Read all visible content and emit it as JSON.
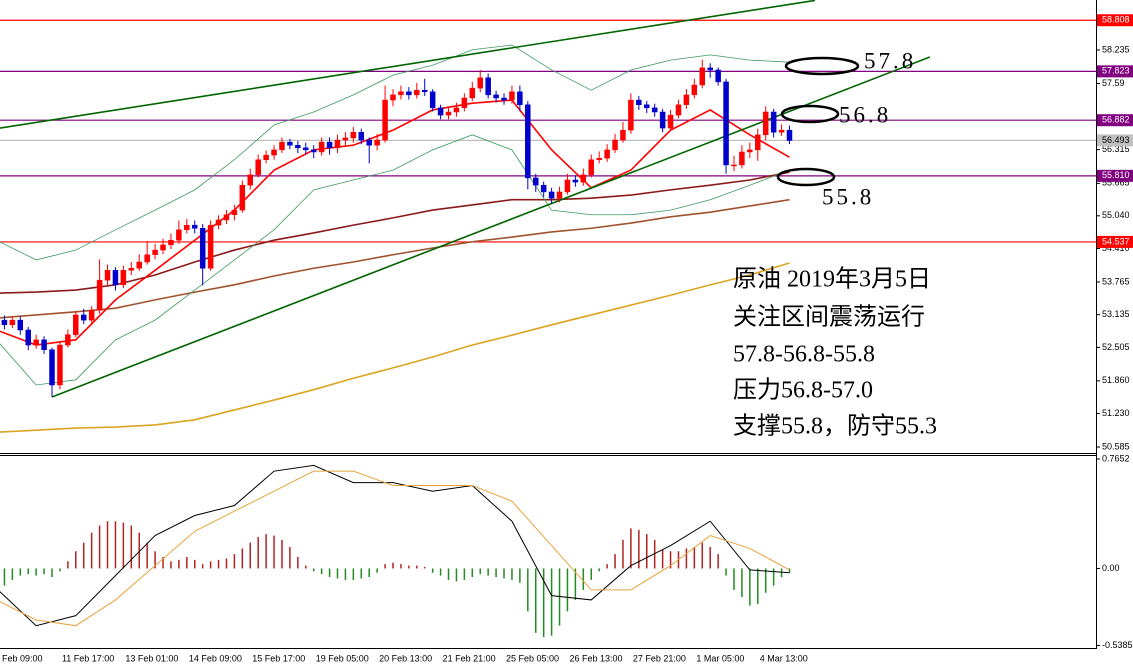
{
  "chart_data": [
    {
      "type": "candlestick",
      "categories": [
        "Feb 09:00",
        null,
        null,
        null,
        null,
        null,
        null,
        null,
        "11 Feb 17:00",
        null,
        null,
        null,
        null,
        null,
        null,
        null,
        "13 Feb 01:00",
        null,
        null,
        null,
        null,
        null,
        null,
        null,
        "14 Feb 09:00",
        null,
        null,
        null,
        null,
        null,
        null,
        null,
        "15 Feb 17:00",
        null,
        null,
        null,
        null,
        null,
        null,
        null,
        "19 Feb 05:00",
        null,
        null,
        null,
        null,
        null,
        null,
        null,
        "20 Feb 13:00",
        null,
        null,
        null,
        null,
        null,
        null,
        null,
        "21 Feb 21:00",
        null,
        null,
        null,
        null,
        null,
        null,
        null,
        "25 Feb 05:00",
        null,
        null,
        null,
        null,
        null,
        null,
        null,
        "26 Feb 13:00",
        null,
        null,
        null,
        null,
        null,
        null,
        null,
        "27 Feb 21:00",
        null,
        null,
        null,
        null,
        null,
        null,
        null,
        "1 Mar 05:00",
        null,
        null,
        null,
        null,
        null,
        null,
        null,
        "4 Mar 13:00",
        null,
        null,
        null,
        null
      ],
      "open": [
        52.95,
        53.03,
        52.94,
        53.03,
        52.84,
        52.55,
        52.65,
        52.46,
        51.78,
        52.55,
        52.75,
        53.13,
        53.03,
        53.22,
        53.8,
        53.99,
        53.71,
        53.99,
        54.03,
        54.15,
        54.29,
        54.38,
        54.48,
        54.57,
        54.77,
        54.86,
        54.8,
        54.03,
        54.86,
        54.96,
        55.06,
        55.15,
        55.63,
        55.83,
        56.12,
        56.21,
        56.31,
        56.46,
        56.4,
        56.35,
        56.31,
        56.27,
        56.46,
        56.35,
        56.5,
        56.54,
        56.65,
        56.5,
        56.4,
        56.5,
        57.27,
        57.37,
        57.43,
        57.37,
        57.46,
        57.43,
        57.12,
        56.98,
        57.04,
        57.12,
        57.31,
        57.5,
        57.7,
        57.37,
        57.31,
        57.27,
        57.43,
        57.18,
        55.77,
        55.63,
        55.5,
        55.38,
        55.5,
        55.73,
        55.69,
        55.83,
        56.12,
        56.15,
        56.31,
        56.5,
        56.69,
        57.27,
        57.18,
        57.12,
        57.04,
        56.73,
        56.98,
        57.18,
        57.37,
        57.56,
        57.89,
        57.85,
        57.62,
        56.02,
        56.02,
        56.27,
        56.31,
        56.6,
        57.04,
        56.65,
        56.69
      ],
      "high": [
        53.15,
        53.12,
        53.1,
        53.1,
        52.9,
        52.75,
        52.72,
        52.5,
        52.62,
        52.85,
        53.2,
        53.25,
        53.3,
        54.2,
        54.1,
        54.05,
        54.08,
        54.15,
        54.3,
        54.55,
        54.5,
        54.6,
        54.7,
        54.95,
        54.98,
        54.95,
        54.88,
        54.95,
        55.05,
        55.15,
        55.25,
        55.72,
        55.95,
        56.22,
        56.3,
        56.4,
        56.55,
        56.52,
        56.48,
        56.45,
        56.4,
        56.55,
        56.55,
        56.6,
        56.65,
        56.75,
        56.72,
        56.55,
        56.62,
        57.55,
        57.48,
        57.55,
        57.52,
        57.6,
        57.68,
        57.48,
        57.18,
        57.12,
        57.22,
        57.4,
        57.62,
        57.85,
        57.78,
        57.45,
        57.4,
        57.55,
        57.55,
        57.25,
        55.85,
        55.7,
        55.58,
        55.6,
        55.85,
        55.82,
        55.95,
        56.22,
        56.28,
        56.42,
        56.62,
        56.85,
        57.4,
        57.35,
        57.25,
        57.2,
        57.1,
        57.08,
        57.28,
        57.48,
        57.68,
        58.05,
        57.98,
        57.9,
        57.68,
        56.2,
        56.4,
        56.45,
        56.72,
        57.15,
        57.1,
        56.8,
        56.78
      ],
      "low": [
        52.85,
        52.85,
        52.88,
        52.75,
        52.45,
        52.48,
        52.38,
        51.55,
        51.7,
        52.5,
        52.7,
        52.95,
        52.98,
        53.15,
        53.7,
        53.6,
        53.65,
        53.9,
        53.98,
        54.1,
        54.2,
        54.3,
        54.4,
        54.5,
        54.7,
        54.7,
        53.7,
        53.98,
        54.78,
        54.88,
        54.95,
        55.1,
        55.55,
        55.78,
        56.05,
        56.12,
        56.25,
        56.32,
        56.25,
        56.22,
        56.15,
        56.2,
        56.22,
        56.25,
        56.4,
        56.45,
        56.42,
        56.05,
        56.3,
        56.45,
        57.15,
        57.28,
        57.28,
        57.3,
        57.35,
        57.05,
        56.9,
        56.9,
        56.95,
        57.05,
        57.25,
        57.42,
        57.3,
        57.22,
        57.18,
        57.2,
        57.05,
        55.55,
        55.5,
        55.4,
        55.28,
        55.3,
        55.45,
        55.6,
        55.62,
        55.78,
        56.05,
        56.08,
        56.25,
        56.45,
        56.62,
        57.08,
        57.02,
        56.95,
        56.65,
        56.68,
        56.92,
        57.1,
        57.3,
        57.5,
        57.7,
        57.55,
        55.85,
        55.9,
        55.95,
        56.15,
        56.1,
        56.5,
        56.55,
        56.58,
        56.42
      ],
      "close": [
        53.03,
        52.94,
        53.03,
        52.84,
        52.55,
        52.65,
        52.46,
        51.78,
        52.55,
        52.75,
        53.13,
        53.03,
        53.22,
        53.8,
        53.99,
        53.71,
        53.99,
        54.03,
        54.15,
        54.29,
        54.38,
        54.48,
        54.57,
        54.77,
        54.86,
        54.8,
        54.03,
        54.86,
        54.96,
        55.06,
        55.15,
        55.63,
        55.83,
        56.12,
        56.21,
        56.31,
        56.46,
        56.4,
        56.35,
        56.31,
        56.27,
        56.46,
        56.35,
        56.5,
        56.54,
        56.65,
        56.5,
        56.4,
        56.5,
        57.27,
        57.37,
        57.43,
        57.37,
        57.46,
        57.43,
        57.12,
        56.98,
        57.04,
        57.12,
        57.31,
        57.5,
        57.7,
        57.37,
        57.31,
        57.27,
        57.43,
        57.18,
        55.77,
        55.63,
        55.5,
        55.38,
        55.5,
        55.73,
        55.69,
        55.83,
        56.12,
        56.15,
        56.31,
        56.5,
        56.69,
        57.27,
        57.18,
        57.12,
        57.04,
        56.73,
        56.98,
        57.18,
        57.37,
        57.56,
        57.89,
        57.85,
        57.62,
        56.02,
        56.02,
        56.27,
        56.31,
        56.6,
        57.04,
        56.65,
        56.69,
        56.49
      ],
      "up_color": "#ff0000",
      "down_color": "#0000cd",
      "ylim": [
        50.47,
        59.198
      ],
      "yticks": [
        58.235,
        57.59,
        56.315,
        55.665,
        {
          "value": 55.04,
          "label": "55.040"
        },
        {
          "value": 54.41,
          "label": "54.410"
        },
        53.765,
        53.135,
        52.505,
        {
          "value": 51.86,
          "label": "51.860"
        },
        {
          "value": 51.23,
          "label": "51.230"
        },
        50.585
      ],
      "levels": [
        {
          "value": 58.808,
          "color": "#ff0000"
        },
        {
          "value": 57.823,
          "color": "#800080"
        },
        {
          "value": 56.882,
          "color": "#800080"
        },
        {
          "value": 56.493,
          "color": "#c0c0c0"
        },
        {
          "value": 55.81,
          "label": "55.810",
          "color": "#800080"
        },
        {
          "value": 54.537,
          "color": "#ff0000"
        }
      ],
      "overlays": [
        {
          "color": "#daa520",
          "x": [
            0,
            5,
            10,
            15,
            20,
            25,
            30,
            35,
            40,
            45,
            50,
            55,
            60,
            65,
            70,
            75,
            80,
            85,
            90,
            95,
            100
          ],
          "values": [
            50.87,
            50.91,
            50.95,
            50.97,
            51.01,
            51.11,
            51.3,
            51.49,
            51.69,
            51.91,
            52.11,
            52.32,
            52.55,
            52.74,
            52.94,
            53.13,
            53.32,
            53.51,
            53.71,
            53.9,
            54.13
          ]
        },
        {
          "color": "#a0522d",
          "x": [
            0,
            5,
            10,
            15,
            20,
            25,
            30,
            35,
            40,
            45,
            50,
            55,
            60,
            65,
            70,
            75,
            80,
            85,
            90,
            95,
            100
          ],
          "values": [
            53.07,
            53.13,
            53.19,
            53.26,
            53.42,
            53.57,
            53.71,
            53.88,
            54.03,
            54.15,
            54.29,
            54.42,
            54.54,
            54.63,
            54.73,
            54.8,
            54.9,
            55.02,
            55.11,
            55.23,
            55.35
          ]
        },
        {
          "color": "#8b1a1a",
          "x": [
            0,
            5,
            10,
            15,
            20,
            25,
            30,
            35,
            40,
            45,
            50,
            55,
            60,
            65,
            70,
            75,
            80,
            85,
            90,
            95,
            100
          ],
          "values": [
            53.55,
            53.57,
            53.61,
            53.71,
            53.9,
            54.15,
            54.38,
            54.57,
            54.71,
            54.86,
            55.0,
            55.15,
            55.25,
            55.35,
            55.35,
            55.38,
            55.44,
            55.54,
            55.63,
            55.73,
            55.88
          ]
        },
        {
          "color": "#3c9a5f",
          "x": [
            0,
            5,
            10,
            15,
            20,
            25,
            30,
            35,
            40,
            45,
            50,
            55,
            60,
            65,
            70,
            75,
            80,
            85,
            90,
            95,
            100
          ],
          "values": [
            54.57,
            54.19,
            54.38,
            54.77,
            55.15,
            55.54,
            56.12,
            56.79,
            57.04,
            57.37,
            57.75,
            57.94,
            58.24,
            58.33,
            57.85,
            57.46,
            57.85,
            58.04,
            58.14,
            58.04,
            58.0
          ]
        },
        {
          "color": "#3c9a5f",
          "x": [
            0,
            5,
            10,
            15,
            20,
            25,
            30,
            35,
            40,
            45,
            50,
            55,
            60,
            65,
            70,
            75,
            80,
            85,
            90,
            95,
            100
          ],
          "values": [
            52.65,
            51.78,
            51.88,
            52.65,
            53.03,
            53.61,
            54.19,
            54.77,
            55.54,
            55.73,
            55.92,
            56.31,
            56.6,
            56.31,
            55.15,
            55.06,
            55.06,
            55.15,
            55.35,
            55.63,
            55.92
          ]
        },
        {
          "color": "#ff0000",
          "x": [
            0,
            5,
            10,
            15,
            20,
            25,
            30,
            35,
            40,
            45,
            50,
            55,
            60,
            65,
            70,
            75,
            80,
            85,
            90,
            95,
            100
          ],
          "values": [
            52.84,
            52.55,
            52.65,
            53.42,
            53.99,
            54.57,
            55.15,
            55.92,
            56.31,
            56.4,
            56.69,
            57.08,
            57.21,
            57.27,
            56.31,
            55.58,
            55.92,
            56.69,
            57.08,
            56.6,
            56.17
          ]
        }
      ],
      "trendlines": [
        {
          "color": "#006400",
          "x": [
            7,
            117.7
          ],
          "values": [
            51.55,
            58.1
          ]
        },
        {
          "color": "#006400",
          "x": [
            0.44,
            103.2
          ],
          "values": [
            56.73,
            59.19
          ]
        }
      ],
      "annotations": [
        "57.8",
        "56.8",
        "55.8"
      ],
      "note_lines": [
        "原油 2019年3月5日",
        "关注区间震荡运行",
        "57.8-56.8-55.8",
        "压力56.8-57.0",
        "支撑55.8，防守55.3"
      ]
    },
    {
      "type": "macd",
      "values": [
        -0.15,
        -0.12,
        -0.08,
        -0.05,
        -0.04,
        -0.05,
        -0.04,
        -0.06,
        -0.02,
        0.05,
        0.12,
        0.18,
        0.25,
        0.3,
        0.33,
        0.33,
        0.32,
        0.3,
        0.25,
        0.18,
        0.12,
        0.08,
        0.05,
        0.06,
        0.08,
        0.06,
        0.03,
        0.05,
        0.06,
        0.07,
        0.1,
        0.14,
        0.18,
        0.22,
        0.24,
        0.23,
        0.2,
        0.15,
        0.08,
        0.02,
        -0.02,
        -0.04,
        -0.06,
        -0.07,
        -0.08,
        -0.08,
        -0.07,
        -0.06,
        -0.03,
        0.03,
        0.04,
        0.03,
        0.02,
        0.02,
        0.01,
        -0.03,
        -0.05,
        -0.08,
        -0.09,
        -0.08,
        -0.06,
        -0.04,
        -0.05,
        -0.06,
        -0.07,
        -0.08,
        -0.1,
        -0.3,
        -0.45,
        -0.48,
        -0.47,
        -0.4,
        -0.3,
        -0.22,
        -0.15,
        -0.08,
        -0.02,
        0.03,
        0.1,
        0.2,
        0.28,
        0.27,
        0.24,
        0.2,
        0.13,
        0.12,
        0.12,
        0.14,
        0.15,
        0.18,
        0.15,
        0.1,
        -0.05,
        -0.15,
        -0.2,
        -0.26,
        -0.25,
        -0.17,
        -0.12,
        -0.06,
        -0.03
      ],
      "up_color": "#b22222",
      "down_color": "#228b22",
      "lines": [
        {
          "color": "#000000",
          "x": [
            0,
            5,
            10,
            15,
            20,
            25,
            30,
            35,
            40,
            45,
            50,
            55,
            60,
            65,
            70,
            75,
            80,
            85,
            90,
            95,
            100
          ],
          "values": [
            -0.14,
            -0.4,
            -0.33,
            -0.05,
            0.23,
            0.37,
            0.44,
            0.68,
            0.72,
            0.6,
            0.6,
            0.54,
            0.58,
            0.33,
            -0.19,
            -0.22,
            0.02,
            0.16,
            0.33,
            -0.01,
            -0.03
          ]
        },
        {
          "color": "#e8a33d",
          "x": [
            0,
            5,
            10,
            15,
            20,
            25,
            30,
            35,
            40,
            45,
            50,
            55,
            60,
            65,
            70,
            75,
            80,
            85,
            90,
            95,
            100
          ],
          "values": [
            -0.22,
            -0.36,
            -0.4,
            -0.22,
            0.02,
            0.26,
            0.4,
            0.54,
            0.68,
            0.68,
            0.58,
            0.58,
            0.58,
            0.47,
            0.16,
            -0.15,
            -0.15,
            0.02,
            0.23,
            0.14,
            -0.01
          ]
        }
      ],
      "ylim": [
        -0.556,
        0.786
      ],
      "yticks": [
        0.7652,
        {
          "value": 0,
          "label": "0.00"
        },
        -0.5385
      ]
    }
  ]
}
